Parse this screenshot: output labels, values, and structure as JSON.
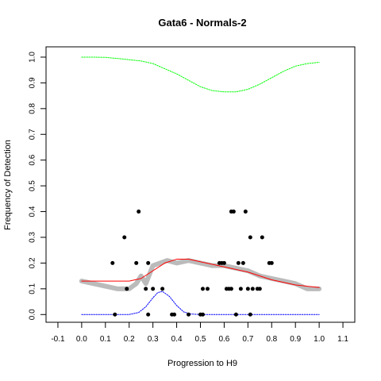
{
  "chart_data": {
    "type": "scatter",
    "title": "Gata6 - Normals-2",
    "xlabel": "Progression to H9",
    "ylabel": "Frequency of Detection",
    "xlim": [
      -0.15,
      1.15
    ],
    "ylim": [
      -0.03,
      1.04
    ],
    "xticks": [
      "-0.1",
      "0.0",
      "0.1",
      "0.2",
      "0.3",
      "0.4",
      "0.5",
      "0.6",
      "0.7",
      "0.8",
      "0.9",
      "1.0",
      "1.1"
    ],
    "yticks": [
      "0.0",
      "0.1",
      "0.2",
      "0.3",
      "0.4",
      "0.5",
      "0.6",
      "0.7",
      "0.8",
      "0.9",
      "1.0"
    ],
    "grid": false,
    "colors": {
      "points": "#000000",
      "running_mean": "#bbbbbb",
      "fit": "#ff0000",
      "upper": "#00ff00",
      "lower": "#0000ff"
    },
    "points": [
      [
        0.13,
        0.2
      ],
      [
        0.14,
        0.0
      ],
      [
        0.18,
        0.3
      ],
      [
        0.19,
        0.1
      ],
      [
        0.23,
        0.2
      ],
      [
        0.24,
        0.4
      ],
      [
        0.27,
        0.1
      ],
      [
        0.28,
        0.2
      ],
      [
        0.28,
        0.0
      ],
      [
        0.3,
        0.1
      ],
      [
        0.34,
        0.1
      ],
      [
        0.38,
        0.0
      ],
      [
        0.39,
        0.0
      ],
      [
        0.45,
        0.0
      ],
      [
        0.5,
        0.0
      ],
      [
        0.51,
        0.1
      ],
      [
        0.51,
        0.0
      ],
      [
        0.53,
        0.1
      ],
      [
        0.58,
        0.2
      ],
      [
        0.59,
        0.2
      ],
      [
        0.6,
        0.2
      ],
      [
        0.61,
        0.1
      ],
      [
        0.62,
        0.1
      ],
      [
        0.63,
        0.1
      ],
      [
        0.63,
        0.4
      ],
      [
        0.64,
        0.4
      ],
      [
        0.65,
        0.0
      ],
      [
        0.66,
        0.2
      ],
      [
        0.67,
        0.1
      ],
      [
        0.68,
        0.2
      ],
      [
        0.69,
        0.4
      ],
      [
        0.7,
        0.1
      ],
      [
        0.71,
        0.3
      ],
      [
        0.71,
        0.0
      ],
      [
        0.72,
        0.1
      ],
      [
        0.74,
        0.1
      ],
      [
        0.75,
        0.1
      ],
      [
        0.76,
        0.3
      ],
      [
        0.79,
        0.2
      ],
      [
        0.8,
        0.2
      ]
    ],
    "series": [
      {
        "kind": "running_mean",
        "x": [
          0.0,
          0.05,
          0.1,
          0.15,
          0.2,
          0.23,
          0.25,
          0.27,
          0.3,
          0.33,
          0.36,
          0.4,
          0.45,
          0.5,
          0.55,
          0.6,
          0.65,
          0.7,
          0.75,
          0.8,
          0.85,
          0.9,
          0.95,
          1.0
        ],
        "y": [
          0.13,
          0.12,
          0.11,
          0.1,
          0.1,
          0.12,
          0.15,
          0.12,
          0.19,
          0.2,
          0.21,
          0.2,
          0.21,
          0.2,
          0.19,
          0.19,
          0.18,
          0.17,
          0.15,
          0.14,
          0.13,
          0.12,
          0.1,
          0.1
        ]
      },
      {
        "kind": "fit",
        "x": [
          0.0,
          0.05,
          0.1,
          0.15,
          0.2,
          0.25,
          0.3,
          0.35,
          0.4,
          0.45,
          0.5,
          0.55,
          0.6,
          0.65,
          0.7,
          0.75,
          0.8,
          0.85,
          0.9,
          0.95,
          1.0
        ],
        "y": [
          0.13,
          0.13,
          0.13,
          0.13,
          0.13,
          0.14,
          0.17,
          0.2,
          0.215,
          0.215,
          0.205,
          0.195,
          0.185,
          0.175,
          0.165,
          0.15,
          0.135,
          0.125,
          0.115,
          0.11,
          0.105
        ]
      },
      {
        "kind": "upper",
        "x": [
          0.0,
          0.05,
          0.1,
          0.15,
          0.2,
          0.25,
          0.3,
          0.35,
          0.4,
          0.45,
          0.5,
          0.55,
          0.6,
          0.65,
          0.7,
          0.75,
          0.8,
          0.85,
          0.9,
          0.95,
          1.0
        ],
        "y": [
          1.0,
          1.0,
          0.999,
          0.995,
          0.99,
          0.985,
          0.975,
          0.955,
          0.935,
          0.91,
          0.885,
          0.87,
          0.865,
          0.865,
          0.875,
          0.895,
          0.92,
          0.945,
          0.965,
          0.975,
          0.98
        ]
      },
      {
        "kind": "lower",
        "x": [
          0.0,
          0.1,
          0.2,
          0.24,
          0.27,
          0.3,
          0.32,
          0.34,
          0.37,
          0.4,
          0.43,
          0.46,
          0.5,
          0.6,
          0.8,
          1.0
        ],
        "y": [
          0.0,
          0.0,
          0.0,
          0.008,
          0.03,
          0.065,
          0.085,
          0.09,
          0.07,
          0.035,
          0.01,
          0.002,
          0.0,
          0.0,
          0.0,
          0.0
        ]
      }
    ]
  }
}
